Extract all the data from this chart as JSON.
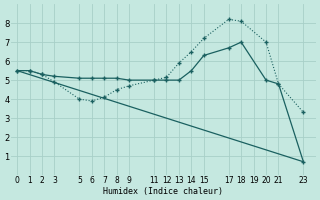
{
  "xlabel": "Humidex (Indice chaleur)",
  "bg_color": "#c5e8e0",
  "grid_color": "#a8cfc8",
  "line_color": "#1a6060",
  "xlim": [
    -0.5,
    24
  ],
  "ylim": [
    0,
    9
  ],
  "xticks": [
    0,
    1,
    2,
    3,
    5,
    6,
    7,
    8,
    9,
    11,
    12,
    13,
    14,
    15,
    17,
    18,
    19,
    20,
    21,
    23
  ],
  "yticks": [
    1,
    2,
    3,
    4,
    5,
    6,
    7,
    8
  ],
  "line1_x": [
    0,
    1,
    2,
    3,
    5,
    6,
    7,
    8,
    9,
    11,
    12,
    13,
    14,
    15,
    17,
    18,
    20,
    21,
    23
  ],
  "line1_y": [
    5.5,
    5.5,
    5.3,
    4.9,
    4.0,
    3.9,
    4.1,
    4.5,
    4.7,
    5.0,
    5.15,
    5.9,
    6.5,
    7.2,
    8.2,
    8.1,
    7.0,
    4.8,
    3.3
  ],
  "line2_x": [
    0,
    1,
    2,
    3,
    5,
    6,
    7,
    8,
    9,
    11,
    12,
    13,
    14,
    15,
    17,
    18,
    20,
    21,
    23
  ],
  "line2_y": [
    5.5,
    5.5,
    5.3,
    5.2,
    5.1,
    5.1,
    5.1,
    5.1,
    5.0,
    5.0,
    5.0,
    5.0,
    5.5,
    6.3,
    6.7,
    7.0,
    5.0,
    4.8,
    0.7
  ],
  "line3_x": [
    0,
    23
  ],
  "line3_y": [
    5.5,
    0.7
  ]
}
